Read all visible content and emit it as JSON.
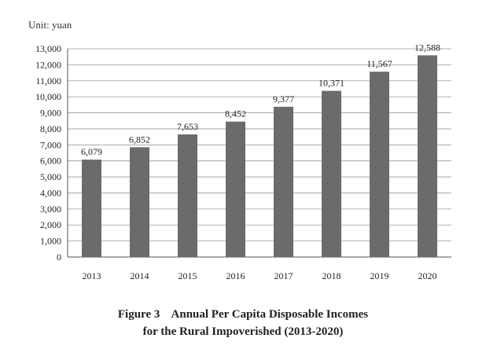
{
  "unit_label": "Unit: yuan",
  "caption": {
    "line1": "Figure 3    Annual Per Capita Disposable Incomes",
    "line2": "for the Rural Impoverished (2013-2020)"
  },
  "colors": {
    "bar": "#6b6b6d",
    "grid": "#9a9a9a",
    "text": "#222222"
  },
  "chart_data": {
    "type": "bar",
    "title": "Figure 3    Annual Per Capita Disposable Incomes for the Rural Impoverished (2013-2020)",
    "xlabel": "",
    "ylabel": "",
    "unit": "Unit: yuan",
    "categories": [
      "2013",
      "2014",
      "2015",
      "2016",
      "2017",
      "2018",
      "2019",
      "2020"
    ],
    "values": [
      6079,
      6852,
      7653,
      8452,
      9377,
      10371,
      11567,
      12588
    ],
    "value_labels": [
      "6,079",
      "6,852",
      "7,653",
      "8,452",
      "9,377",
      "10,371",
      "11,567",
      "12,588"
    ],
    "ylim": [
      0,
      13000
    ],
    "yticks": [
      0,
      1000,
      2000,
      3000,
      4000,
      5000,
      6000,
      7000,
      8000,
      9000,
      10000,
      11000,
      12000,
      13000
    ],
    "ytick_labels": [
      "0",
      "1,000",
      "2,000",
      "3,000",
      "4,000",
      "5,000",
      "6,000",
      "7,000",
      "8,000",
      "9,000",
      "10,000",
      "11,000",
      "12,000",
      "13,000"
    ],
    "grid": true,
    "legend": "none"
  }
}
